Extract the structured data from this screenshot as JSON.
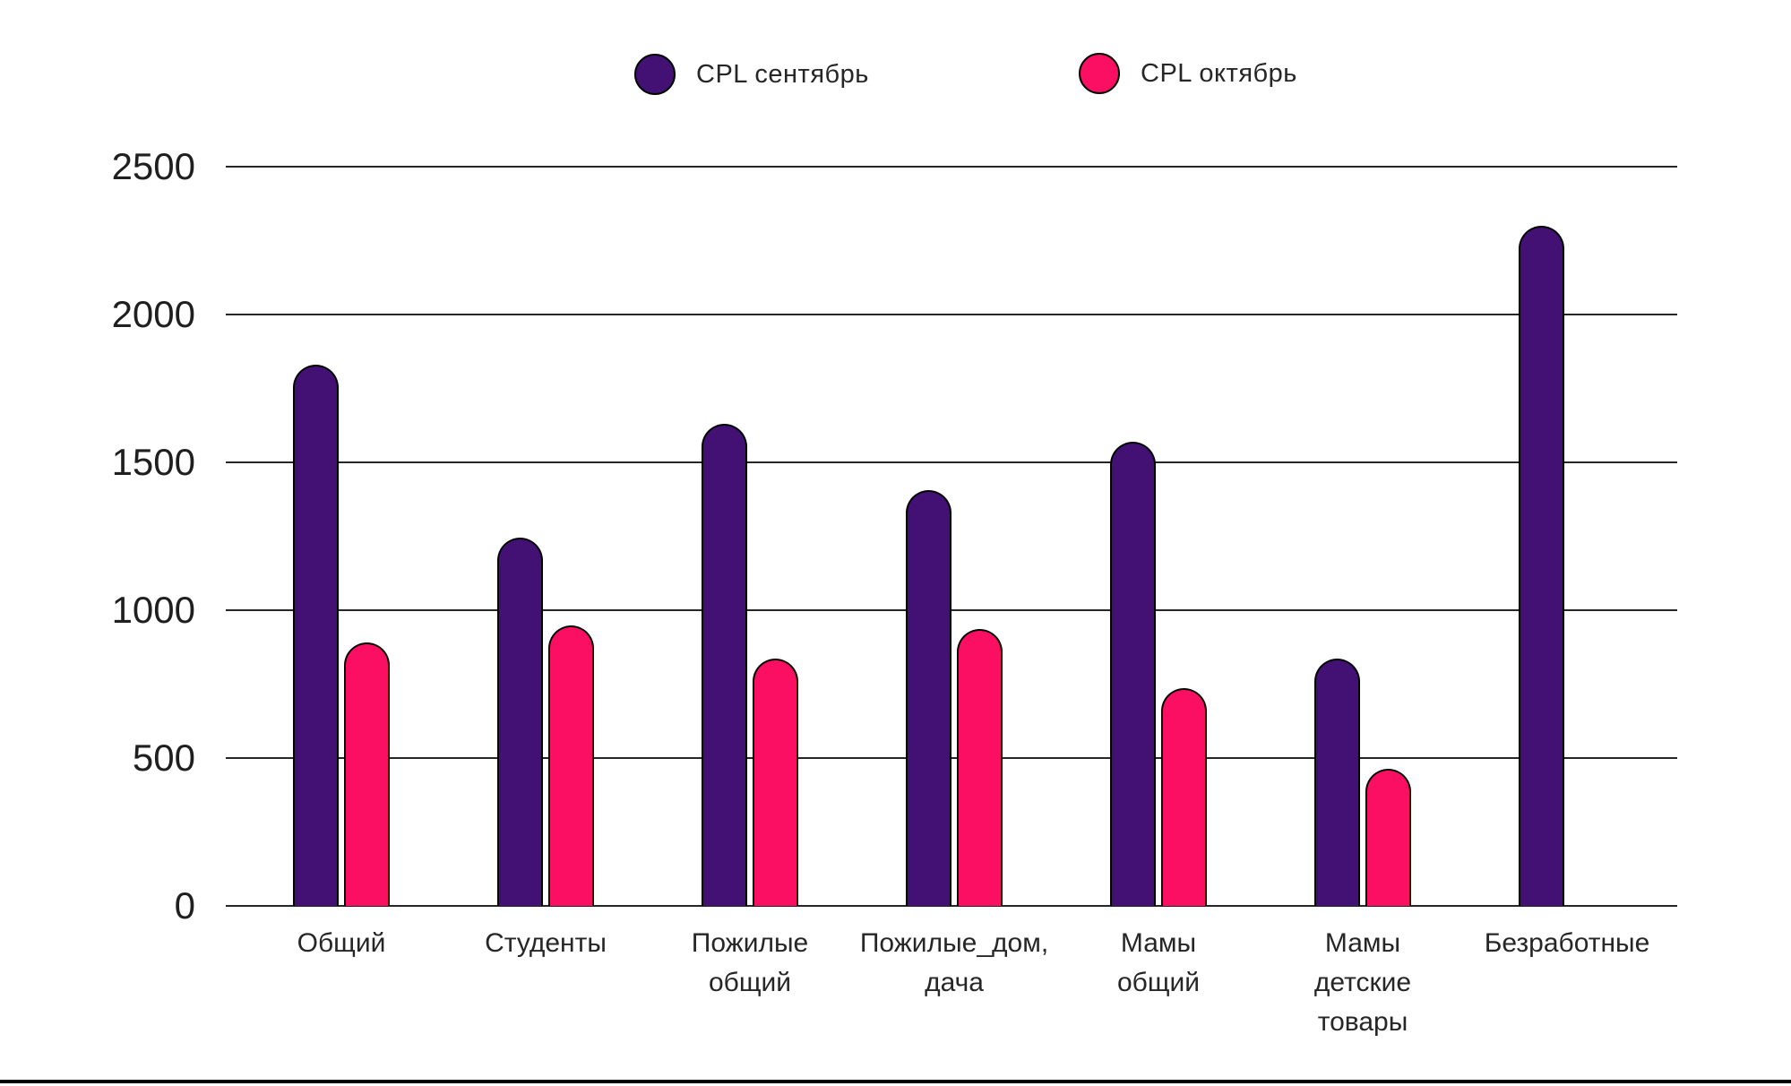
{
  "chart_data": {
    "type": "bar",
    "title": "",
    "xlabel": "",
    "ylabel": "",
    "categories": [
      "Общий",
      "Студенты",
      "Пожилые\nобщий",
      "Пожилые_дом,\nдача",
      "Мамы\nобщий",
      "Мамы\nдетские\nтовары",
      "Безработные"
    ],
    "series": [
      {
        "name": "CPL сентябрь",
        "color": "#421173",
        "values": [
          1830,
          1245,
          1630,
          1405,
          1570,
          835,
          2300
        ]
      },
      {
        "name": "CPL октябрь",
        "color": "#fa0f62",
        "values": [
          890,
          950,
          835,
          935,
          735,
          465,
          null
        ]
      }
    ],
    "ylim": [
      0,
      2500
    ],
    "yticks": [
      0,
      500,
      1000,
      1500,
      2000,
      2500
    ],
    "grid": true,
    "legend_position": "top-center",
    "bar_outline_color": "#000000",
    "gridline_color": "#262626",
    "text_color": "#262626",
    "background_color": "#ffffff"
  }
}
